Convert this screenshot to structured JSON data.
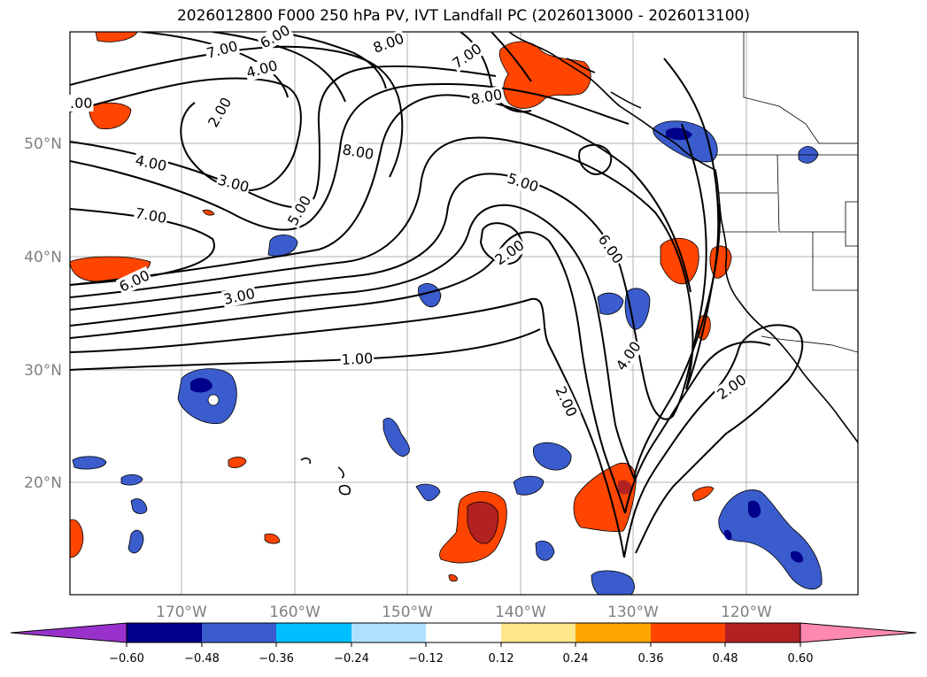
{
  "title": "2026012800 F000 250 hPa PV, IVT Landfall PC (2026013000 - 2026013100)",
  "map": {
    "lat_labels": [
      "50°N",
      "40°N",
      "30°N",
      "20°N"
    ],
    "lon_labels": [
      "170°W",
      "160°W",
      "150°W",
      "140°W",
      "130°W",
      "120°W"
    ],
    "contour_labels": [
      "7.00",
      "6.00",
      "4.00",
      "2.00",
      "8.00",
      "7.00",
      "8.00",
      ".00",
      "4.00",
      "3.00",
      "7.00",
      "5.00",
      "8.00",
      "5.00",
      "6.00",
      "3.00",
      "2.00",
      "1.00",
      "2.00",
      "4.00",
      "2.00",
      "6.00"
    ]
  },
  "colorbar": {
    "ticks": [
      "−0.60",
      "−0.48",
      "−0.36",
      "−0.24",
      "−0.12",
      "0.12",
      "0.24",
      "0.36",
      "0.48",
      "0.60"
    ],
    "colors": [
      "#9932cc",
      "#00008b",
      "#3a5ccc",
      "#00bfff",
      "#b0e0ff",
      "#ffffff",
      "#ffe88c",
      "#ffa500",
      "#ff4500",
      "#b22222",
      "#ff88b0"
    ]
  }
}
